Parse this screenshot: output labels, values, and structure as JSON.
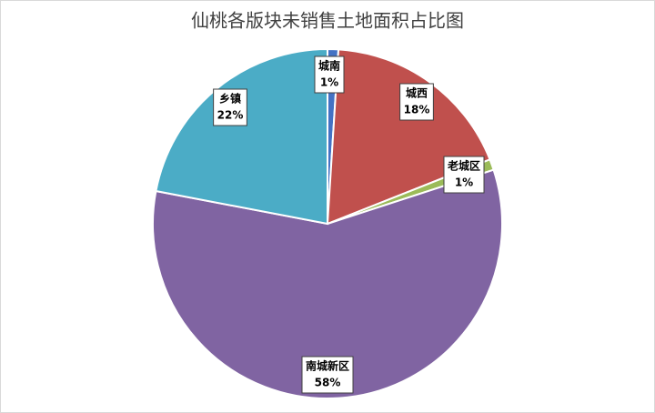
{
  "chart_data": {
    "type": "pie",
    "title": "仙桃各版块未销售土地面积占比图",
    "categories": [
      "城南",
      "城西",
      "老城区",
      "南城新区",
      "乡镇"
    ],
    "values": [
      1,
      18,
      1,
      58,
      22
    ],
    "value_labels": [
      "1%",
      "18%",
      "1%",
      "58%",
      "22%"
    ],
    "colors": [
      "#4472c4",
      "#c0504d",
      "#9bbb59",
      "#8064a2",
      "#4bacc6"
    ]
  }
}
